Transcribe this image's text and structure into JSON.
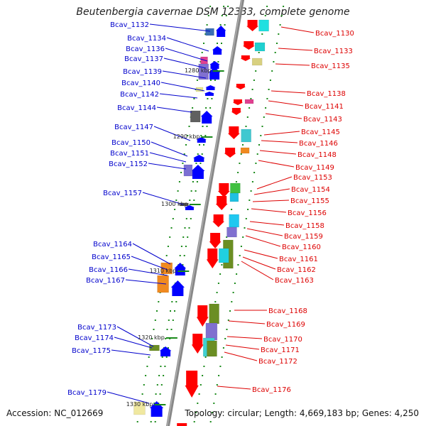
{
  "title": "Beutenbergia cavernae DSM 12333, complete genome",
  "accession": "Accession: NC_012669",
  "summary": "Topology: circular; Length: 4,669,183 bp; Genes: 4,250",
  "colors": {
    "forward_label": "#0000cc",
    "reverse_label": "#dd0000",
    "forward_arrow": "#0000ff",
    "reverse_arrow": "#ff0000",
    "backbone": "#888888",
    "tick": "#1a8a1a"
  },
  "kbp_ticks": [
    "1280 kbp",
    "1290 kbp",
    "1300 kbp",
    "1310 kbp",
    "1320 kbp",
    "1330 kbp"
  ],
  "left_genes": [
    "Bcav_1132",
    "Bcav_1134",
    "Bcav_1136",
    "Bcav_1137",
    "Bcav_1139",
    "Bcav_1140",
    "Bcav_1142",
    "Bcav_1144",
    "Bcav_1147",
    "Bcav_1150",
    "Bcav_1151",
    "Bcav_1152",
    "Bcav_1157",
    "Bcav_1164",
    "Bcav_1165",
    "Bcav_1166",
    "Bcav_1167",
    "Bcav_1173",
    "Bcav_1174",
    "Bcav_1175",
    "Bcav_1179"
  ],
  "right_genes": [
    "Bcav_1130",
    "Bcav_1133",
    "Bcav_1135",
    "Bcav_1138",
    "Bcav_1141",
    "Bcav_1143",
    "Bcav_1145",
    "Bcav_1146",
    "Bcav_1148",
    "Bcav_1149",
    "Bcav_1153",
    "Bcav_1154",
    "Bcav_1155",
    "Bcav_1156",
    "Bcav_1158",
    "Bcav_1159",
    "Bcav_1160",
    "Bcav_1161",
    "Bcav_1162",
    "Bcav_1163",
    "Bcav_1168",
    "Bcav_1169",
    "Bcav_1170",
    "Bcav_1171",
    "Bcav_1172",
    "Bcav_1176"
  ]
}
